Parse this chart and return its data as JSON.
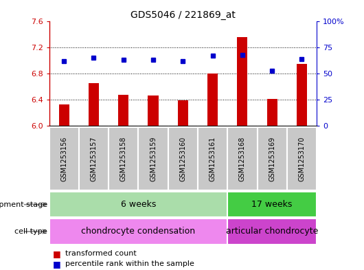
{
  "title": "GDS5046 / 221869_at",
  "samples": [
    "GSM1253156",
    "GSM1253157",
    "GSM1253158",
    "GSM1253159",
    "GSM1253160",
    "GSM1253161",
    "GSM1253168",
    "GSM1253169",
    "GSM1253170"
  ],
  "bar_values": [
    6.32,
    6.65,
    6.47,
    6.46,
    6.39,
    6.8,
    7.36,
    6.41,
    6.95
  ],
  "dot_values": [
    62,
    65,
    63,
    63,
    62,
    67,
    68,
    53,
    64
  ],
  "bar_bottom": 6.0,
  "ylim_left": [
    6.0,
    7.6
  ],
  "ylim_right": [
    0,
    100
  ],
  "bar_color": "#cc0000",
  "dot_color": "#0000cc",
  "bg_color": "#ffffff",
  "plot_bg": "#ffffff",
  "left_axis_color": "#cc0000",
  "right_axis_color": "#0000cc",
  "yticks_left": [
    6.0,
    6.4,
    6.8,
    7.2,
    7.6
  ],
  "yticks_right": [
    0,
    25,
    50,
    75,
    100
  ],
  "sample_bg": "#c8c8c8",
  "development_stage_groups": [
    {
      "label": "6 weeks",
      "start": 0,
      "end": 6,
      "color": "#aaddaa"
    },
    {
      "label": "17 weeks",
      "start": 6,
      "end": 9,
      "color": "#44cc44"
    }
  ],
  "cell_type_groups": [
    {
      "label": "chondrocyte condensation",
      "start": 0,
      "end": 6,
      "color": "#ee88ee"
    },
    {
      "label": "articular chondrocyte",
      "start": 6,
      "end": 9,
      "color": "#cc44cc"
    }
  ],
  "legend_items": [
    {
      "label": "transformed count",
      "color": "#cc0000"
    },
    {
      "label": "percentile rank within the sample",
      "color": "#0000cc"
    }
  ],
  "dev_stage_label": "development stage",
  "cell_type_label": "cell type"
}
